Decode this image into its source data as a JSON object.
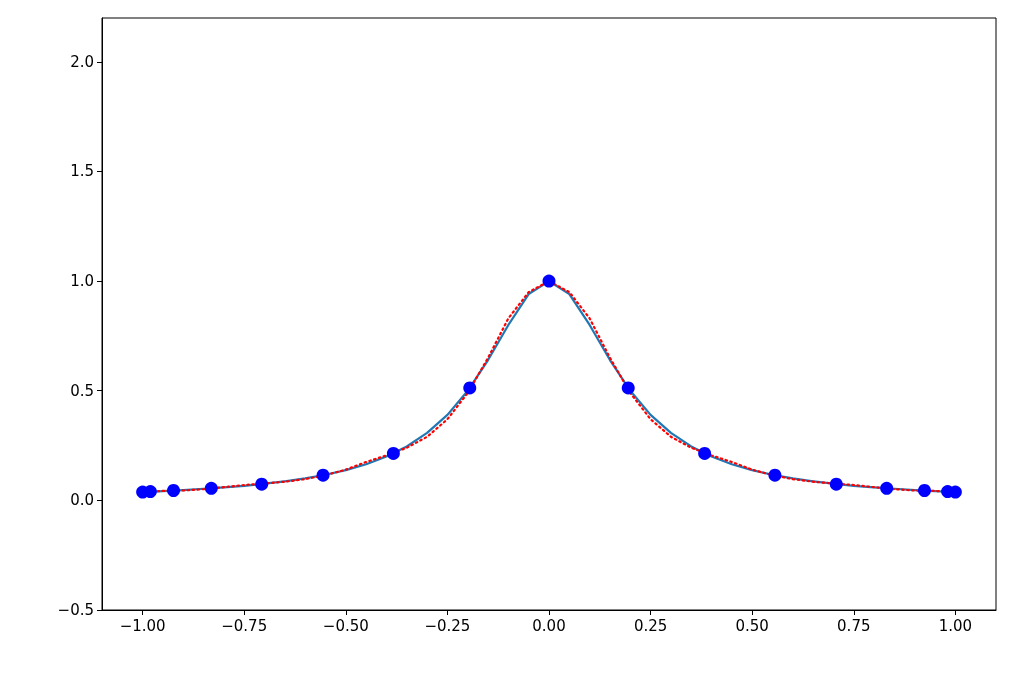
{
  "chart_data": {
    "type": "line",
    "grid": false,
    "xlim": [
      -1.1,
      1.1
    ],
    "xticks": [
      {
        "value": -1,
        "label": "−1.00"
      },
      {
        "value": -0.75,
        "label": "−0.75"
      },
      {
        "value": -0.5,
        "label": "−0.50"
      },
      {
        "value": -0.25,
        "label": "−0.25"
      },
      {
        "value": 0,
        "label": "0.00"
      },
      {
        "value": 0.25,
        "label": "0.25"
      },
      {
        "value": 0.5,
        "label": "0.50"
      },
      {
        "value": 0.75,
        "label": "0.75"
      },
      {
        "value": 1,
        "label": "1.00"
      }
    ],
    "ylim": [
      -0.5,
      2.2
    ],
    "yticks": [
      {
        "value": -0.5,
        "label": "−0.5"
      },
      {
        "value": 0,
        "label": "0.0"
      },
      {
        "value": 0.5,
        "label": "0.5"
      },
      {
        "value": 1,
        "label": "1.0"
      },
      {
        "value": 1.5,
        "label": "1.5"
      },
      {
        "value": 2,
        "label": "2.0"
      }
    ],
    "series": [
      {
        "type": "scatter",
        "marker": "circle",
        "color": "#0000ff",
        "x": [
          -1,
          -0.981,
          -0.924,
          -0.831,
          -0.707,
          -0.556,
          -0.383,
          -0.195,
          0,
          0.195,
          0.383,
          0.556,
          0.707,
          0.831,
          0.924,
          0.981,
          1
        ],
        "values": [
          0.038,
          0.04,
          0.045,
          0.055,
          0.074,
          0.115,
          0.214,
          0.513,
          1,
          0.513,
          0.214,
          0.115,
          0.074,
          0.055,
          0.045,
          0.04,
          0.038
        ]
      },
      {
        "type": "line",
        "line_style": "solid",
        "marker": "none",
        "color": "#1f77b4",
        "x": [
          -1,
          -0.95,
          -0.9,
          -0.85,
          -0.8,
          -0.75,
          -0.7,
          -0.65,
          -0.6,
          -0.55,
          -0.5,
          -0.45,
          -0.4,
          -0.35,
          -0.3,
          -0.25,
          -0.2,
          -0.15,
          -0.1,
          -0.05,
          0,
          0.05,
          0.1,
          0.15,
          0.2,
          0.25,
          0.3,
          0.35,
          0.4,
          0.45,
          0.5,
          0.55,
          0.6,
          0.65,
          0.7,
          0.75,
          0.8,
          0.85,
          0.9,
          0.95,
          1
        ],
        "values": [
          0.038,
          0.042,
          0.047,
          0.053,
          0.059,
          0.066,
          0.076,
          0.087,
          0.1,
          0.117,
          0.138,
          0.165,
          0.2,
          0.246,
          0.308,
          0.39,
          0.5,
          0.64,
          0.8,
          0.941,
          1,
          0.941,
          0.8,
          0.64,
          0.5,
          0.39,
          0.308,
          0.246,
          0.2,
          0.165,
          0.138,
          0.117,
          0.1,
          0.087,
          0.076,
          0.066,
          0.059,
          0.053,
          0.047,
          0.042,
          0.038
        ]
      },
      {
        "type": "line",
        "line_style": "dotted",
        "marker": "none",
        "color": "#ff0000",
        "x": [
          -1,
          -0.95,
          -0.9,
          -0.85,
          -0.8,
          -0.75,
          -0.7,
          -0.65,
          -0.6,
          -0.55,
          -0.5,
          -0.45,
          -0.4,
          -0.35,
          -0.3,
          -0.25,
          -0.2,
          -0.15,
          -0.1,
          -0.05,
          0,
          0.05,
          0.1,
          0.15,
          0.2,
          0.25,
          0.3,
          0.35,
          0.4,
          0.45,
          0.5,
          0.55,
          0.6,
          0.65,
          0.7,
          0.75,
          0.8,
          0.85,
          0.9,
          0.95,
          1
        ],
        "values": [
          0.038,
          0.043,
          0.045,
          0.051,
          0.06,
          0.07,
          0.077,
          0.085,
          0.097,
          0.115,
          0.14,
          0.175,
          0.205,
          0.24,
          0.29,
          0.37,
          0.49,
          0.65,
          0.83,
          0.95,
          1,
          0.95,
          0.83,
          0.65,
          0.49,
          0.37,
          0.29,
          0.24,
          0.205,
          0.175,
          0.14,
          0.115,
          0.097,
          0.085,
          0.077,
          0.07,
          0.06,
          0.051,
          0.045,
          0.043,
          0.038
        ]
      }
    ]
  }
}
